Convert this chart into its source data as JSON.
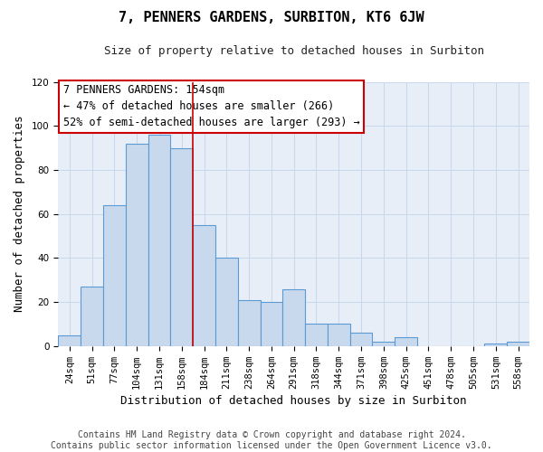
{
  "title": "7, PENNERS GARDENS, SURBITON, KT6 6JW",
  "subtitle": "Size of property relative to detached houses in Surbiton",
  "xlabel": "Distribution of detached houses by size in Surbiton",
  "ylabel": "Number of detached properties",
  "bar_labels": [
    "24sqm",
    "51sqm",
    "77sqm",
    "104sqm",
    "131sqm",
    "158sqm",
    "184sqm",
    "211sqm",
    "238sqm",
    "264sqm",
    "291sqm",
    "318sqm",
    "344sqm",
    "371sqm",
    "398sqm",
    "425sqm",
    "451sqm",
    "478sqm",
    "505sqm",
    "531sqm",
    "558sqm"
  ],
  "bar_values": [
    5,
    27,
    64,
    92,
    96,
    90,
    55,
    40,
    21,
    20,
    26,
    10,
    10,
    6,
    2,
    4,
    0,
    0,
    0,
    1,
    2
  ],
  "bar_color": "#c8d9ed",
  "bar_edge_color": "#5b9bd5",
  "vline_x": 5.5,
  "vline_color": "#cc0000",
  "annotation_line1": "7 PENNERS GARDENS: 154sqm",
  "annotation_line2": "← 47% of detached houses are smaller (266)",
  "annotation_line3": "52% of semi-detached houses are larger (293) →",
  "annotation_box_edge": "#cc0000",
  "ylim": [
    0,
    120
  ],
  "yticks": [
    0,
    20,
    40,
    60,
    80,
    100,
    120
  ],
  "footer_line1": "Contains HM Land Registry data © Crown copyright and database right 2024.",
  "footer_line2": "Contains public sector information licensed under the Open Government Licence v3.0.",
  "background_color": "#ffffff",
  "plot_bg_color": "#e8eef7",
  "grid_color": "#c8d8ec",
  "title_fontsize": 11,
  "subtitle_fontsize": 9,
  "axis_label_fontsize": 9,
  "tick_fontsize": 7.5,
  "annotation_fontsize": 8.5,
  "footer_fontsize": 7
}
